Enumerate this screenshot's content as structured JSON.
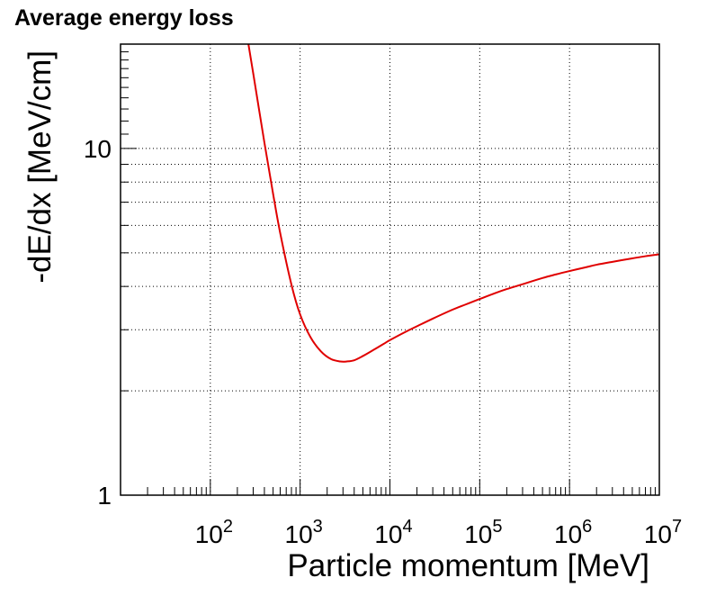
{
  "chart_data": {
    "type": "line",
    "title": "Average energy loss",
    "xlabel": "Particle momentum [MeV]",
    "ylabel": "-dE/dx  [MeV/cm]",
    "xscale": "log",
    "yscale": "log",
    "xlim": [
      10,
      10000000
    ],
    "ylim": [
      1,
      20
    ],
    "grid": true,
    "legend": "none",
    "line_color": "#e00000",
    "x_tick_labels": [
      {
        "mantissa": "10",
        "exp": "2",
        "value": 100
      },
      {
        "mantissa": "10",
        "exp": "3",
        "value": 1000
      },
      {
        "mantissa": "10",
        "exp": "4",
        "value": 10000
      },
      {
        "mantissa": "10",
        "exp": "5",
        "value": 100000
      },
      {
        "mantissa": "10",
        "exp": "6",
        "value": 1000000
      },
      {
        "mantissa": "10",
        "exp": "7",
        "value": 10000000
      }
    ],
    "y_tick_labels": [
      {
        "label": "1",
        "value": 1
      },
      {
        "label": "10",
        "value": 10
      }
    ],
    "series": [
      {
        "x": [
          250,
          300,
          400,
          500,
          600,
          800,
          1000,
          1300,
          1700,
          2200,
          2800,
          3300,
          4000,
          5000,
          6500,
          8500,
          10000,
          15000,
          20000,
          30000,
          50000,
          70000,
          100000,
          150000,
          200000,
          300000,
          500000,
          700000,
          1000000,
          1500000,
          2000000,
          3000000,
          5000000,
          7000000,
          10000000
        ],
        "y": [
          22.0,
          16.5,
          10.4,
          7.4,
          5.7,
          4.05,
          3.32,
          2.86,
          2.6,
          2.47,
          2.43,
          2.43,
          2.45,
          2.52,
          2.62,
          2.73,
          2.8,
          2.96,
          3.07,
          3.23,
          3.43,
          3.55,
          3.68,
          3.83,
          3.93,
          4.06,
          4.23,
          4.33,
          4.43,
          4.54,
          4.62,
          4.71,
          4.82,
          4.89,
          4.95
        ]
      }
    ]
  }
}
